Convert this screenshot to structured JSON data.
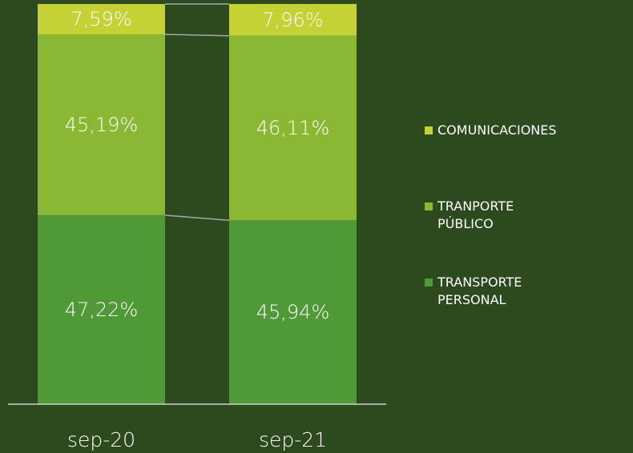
{
  "chart_data": {
    "type": "stacked_bar",
    "categories": [
      "sep-20",
      "sep-21"
    ],
    "series": [
      {
        "name": "TRANSPORTE PERSONAL",
        "color": "#4f9a37",
        "values": [
          47.22,
          45.94
        ],
        "value_labels": [
          "47,22%",
          "45,94%"
        ]
      },
      {
        "name": "TRANPORTE PÚBLICO",
        "color": "#8bb834",
        "values": [
          45.19,
          46.11
        ],
        "value_labels": [
          "45,19%",
          "46,11%"
        ]
      },
      {
        "name": "COMUNICACIONES",
        "color": "#c6d136",
        "values": [
          7.59,
          7.96
        ],
        "value_labels": [
          "7,59%",
          "7,96%"
        ]
      }
    ],
    "ylim": [
      0,
      100
    ],
    "legend": "right"
  }
}
